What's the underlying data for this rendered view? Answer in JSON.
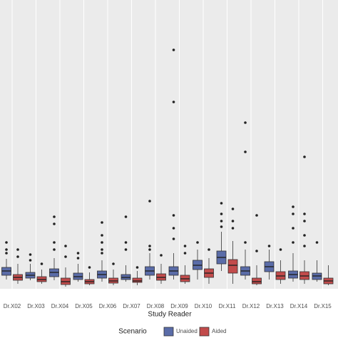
{
  "chart_data": {
    "type": "box",
    "x_label": "Study Reader",
    "legend_title": "Scenario",
    "categories": [
      "Dr.X02",
      "Dr.X03",
      "Dr.X04",
      "Dr.X05",
      "Dr.X06",
      "Dr.X07",
      "Dr.X08",
      "Dr.X09",
      "Dr.X10",
      "Dr.X11",
      "Dr.X12",
      "Dr.X13",
      "Dr.X14",
      "Dr.X15"
    ],
    "ylim": [
      0,
      405
    ],
    "grid": true,
    "legend": "bottom",
    "series": [
      {
        "name": "Unaided",
        "color": "#5a6ca8",
        "boxes": [
          {
            "low": 13,
            "q1": 19,
            "median": 25,
            "q3": 30,
            "high": 42,
            "outliers": [
              65,
              55,
              50
            ]
          },
          {
            "low": 12,
            "q1": 15,
            "median": 19,
            "q3": 23,
            "high": 35,
            "outliers": [
              48,
              40
            ]
          },
          {
            "low": 12,
            "q1": 17,
            "median": 23,
            "q3": 28,
            "high": 43,
            "outliers": [
              101,
              91,
              65,
              55
            ]
          },
          {
            "low": 10,
            "q1": 13,
            "median": 17,
            "q3": 22,
            "high": 35,
            "outliers": [
              50,
              43
            ]
          },
          {
            "low": 10,
            "q1": 15,
            "median": 20,
            "q3": 25,
            "high": 40,
            "outliers": [
              93,
              75,
              65,
              55,
              50
            ]
          },
          {
            "low": 10,
            "q1": 13,
            "median": 16,
            "q3": 20,
            "high": 33,
            "outliers": [
              101,
              65,
              55
            ]
          },
          {
            "low": 13,
            "q1": 19,
            "median": 25,
            "q3": 31,
            "high": 50,
            "outliers": [
              123,
              60,
              55
            ]
          },
          {
            "low": 13,
            "q1": 19,
            "median": 25,
            "q3": 31,
            "high": 50,
            "outliers": [
              335,
              262,
              103,
              85,
              70
            ]
          },
          {
            "low": 13,
            "q1": 27,
            "median": 33,
            "q3": 40,
            "high": 55,
            "outliers": [
              65
            ]
          },
          {
            "low": 25,
            "q1": 35,
            "median": 44,
            "q3": 53,
            "high": 80,
            "outliers": [
              120,
              105,
              95,
              87
            ]
          },
          {
            "low": 13,
            "q1": 19,
            "median": 25,
            "q3": 31,
            "high": 55,
            "outliers": [
              233,
              192,
              65
            ]
          },
          {
            "low": 13,
            "q1": 24,
            "median": 31,
            "q3": 38,
            "high": 55,
            "outliers": [
              60
            ]
          },
          {
            "low": 10,
            "q1": 15,
            "median": 20,
            "q3": 25,
            "high": 50,
            "outliers": [
              115,
              105,
              85,
              65
            ]
          },
          {
            "low": 10,
            "q1": 13,
            "median": 18,
            "q3": 22,
            "high": 40,
            "outliers": [
              65
            ]
          }
        ]
      },
      {
        "name": "Aided",
        "color": "#c24b4b",
        "boxes": [
          {
            "low": 7,
            "q1": 12,
            "median": 16,
            "q3": 20,
            "high": 35,
            "outliers": [
              55,
              45
            ]
          },
          {
            "low": 7,
            "q1": 10,
            "median": 13,
            "q3": 17,
            "high": 27,
            "outliers": [
              35
            ]
          },
          {
            "low": 3,
            "q1": 6,
            "median": 10,
            "q3": 15,
            "high": 30,
            "outliers": [
              60,
              45
            ]
          },
          {
            "low": 5,
            "q1": 7,
            "median": 10,
            "q3": 13,
            "high": 23,
            "outliers": [
              30
            ]
          },
          {
            "low": 5,
            "q1": 8,
            "median": 11,
            "q3": 15,
            "high": 27,
            "outliers": [
              35
            ]
          },
          {
            "low": 5,
            "q1": 9,
            "median": 11,
            "q3": 15,
            "high": 25,
            "outliers": [
              30
            ]
          },
          {
            "low": 7,
            "q1": 12,
            "median": 16,
            "q3": 21,
            "high": 35,
            "outliers": [
              47
            ]
          },
          {
            "low": 7,
            "q1": 10,
            "median": 14,
            "q3": 19,
            "high": 33,
            "outliers": [
              60,
              50
            ]
          },
          {
            "low": 7,
            "q1": 16,
            "median": 22,
            "q3": 28,
            "high": 43,
            "outliers": [
              55
            ]
          },
          {
            "low": 7,
            "q1": 22,
            "median": 33,
            "q3": 41,
            "high": 67,
            "outliers": [
              112,
              95,
              85
            ]
          },
          {
            "low": 5,
            "q1": 7,
            "median": 10,
            "q3": 15,
            "high": 33,
            "outliers": [
              103,
              53
            ]
          },
          {
            "low": 7,
            "q1": 13,
            "median": 18,
            "q3": 24,
            "high": 40,
            "outliers": [
              55
            ]
          },
          {
            "low": 7,
            "q1": 13,
            "median": 18,
            "q3": 24,
            "high": 40,
            "outliers": [
              185,
              105,
              95,
              75,
              60
            ]
          },
          {
            "low": 5,
            "q1": 7,
            "median": 11,
            "q3": 15,
            "high": 33,
            "outliers": []
          }
        ]
      }
    ]
  }
}
